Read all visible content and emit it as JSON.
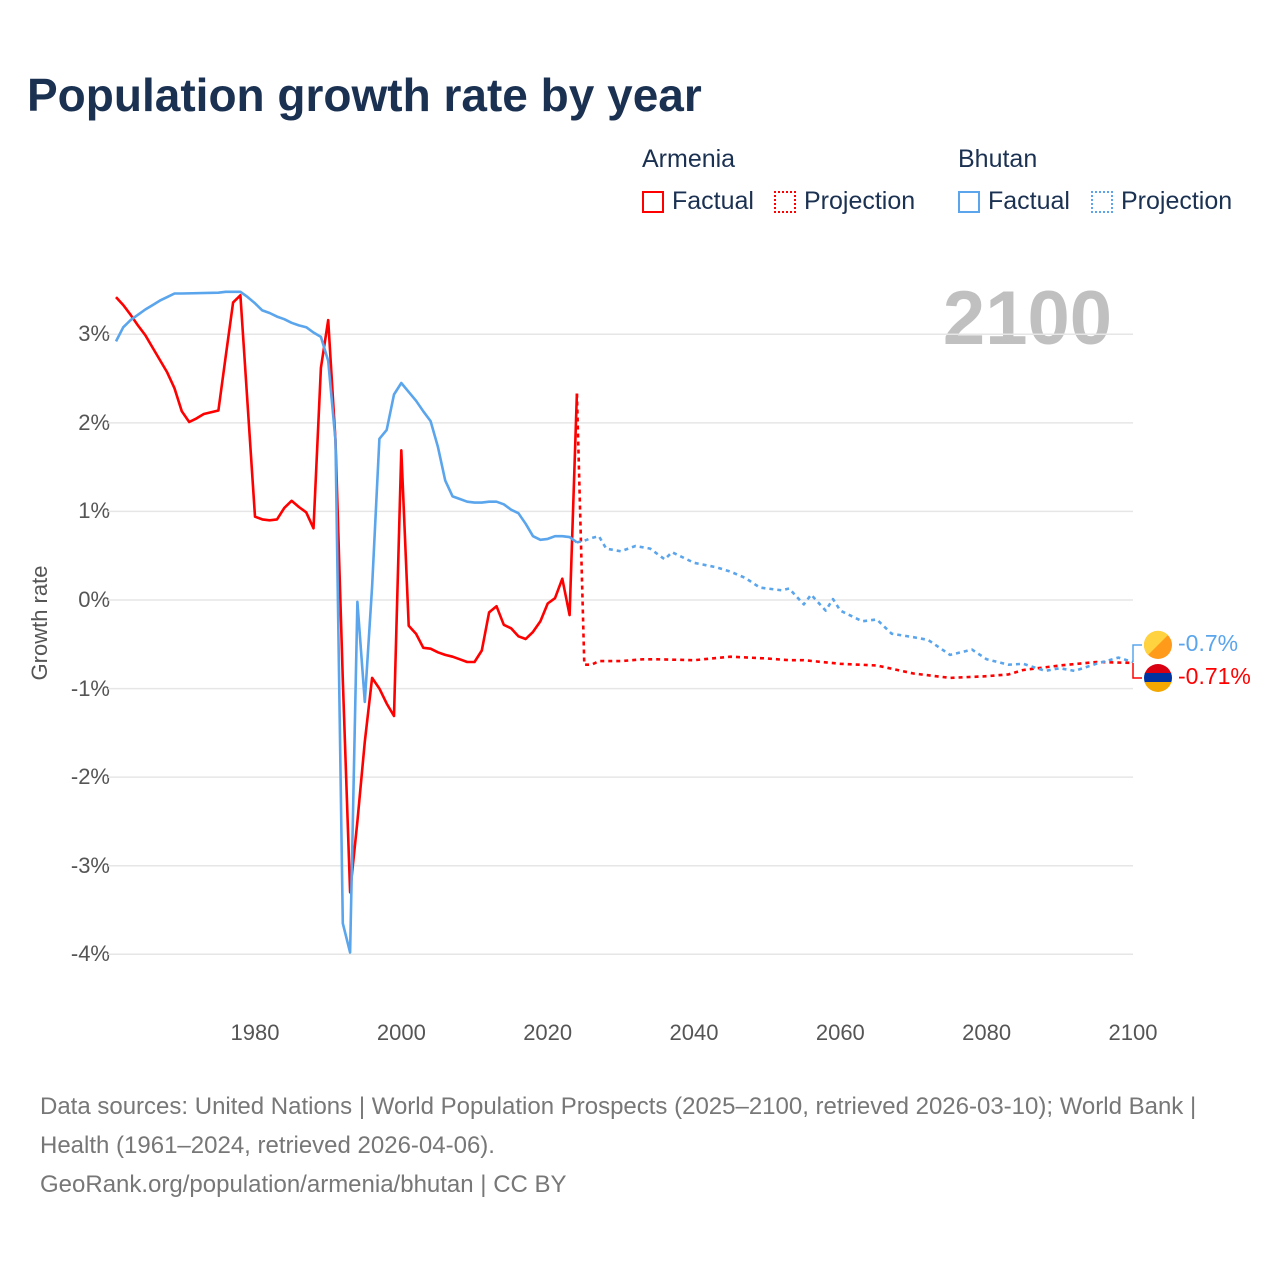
{
  "chart_data": {
    "type": "line",
    "title": "Population growth rate by year",
    "ylabel": "Growth rate",
    "xlabel": "",
    "xlim": [
      1961,
      2100
    ],
    "ylim": [
      -4,
      3
    ],
    "grid": true,
    "current_year": "2100",
    "x_ticks": [
      "1980",
      "2000",
      "2020",
      "2040",
      "2060",
      "2080",
      "2100"
    ],
    "y_ticks": [
      "3%",
      "2%",
      "1%",
      "0%",
      "-1%",
      "-2%",
      "-3%",
      "-4%"
    ],
    "legend": {
      "armenia": "Armenia",
      "bhutan": "Bhutan",
      "factual": "Factual",
      "projection": "Projection",
      "placement": "top-right"
    },
    "series": [
      {
        "name": "Armenia",
        "kind": "Factual",
        "color": "#ff0000",
        "x": [
          1961,
          1962,
          1963,
          1964,
          1965,
          1966,
          1967,
          1968,
          1969,
          1970,
          1971,
          1972,
          1973,
          1974,
          1975,
          1976,
          1977,
          1978,
          1979,
          1980,
          1981,
          1982,
          1983,
          1984,
          1985,
          1986,
          1987,
          1988,
          1989,
          1990,
          1991,
          1992,
          1993,
          1994,
          1995,
          1996,
          1997,
          1998,
          1999,
          2000,
          2001,
          2002,
          2003,
          2004,
          2005,
          2006,
          2007,
          2008,
          2009,
          2010,
          2011,
          2012,
          2013,
          2014,
          2015,
          2016,
          2017,
          2018,
          2019,
          2020,
          2021,
          2022,
          2023,
          2024
        ],
        "y": [
          3.42,
          3.33,
          3.22,
          3.1,
          2.99,
          2.85,
          2.71,
          2.57,
          2.39,
          2.13,
          2.01,
          2.05,
          2.1,
          2.12,
          2.14,
          2.75,
          3.36,
          3.44,
          2.19,
          0.94,
          0.91,
          0.9,
          0.91,
          1.04,
          1.12,
          1.05,
          0.99,
          0.81,
          2.62,
          3.16,
          1.8,
          -0.9,
          -3.3,
          -2.5,
          -1.6,
          -0.88,
          -1.0,
          -1.17,
          -1.31,
          1.69,
          -0.29,
          -0.38,
          -0.54,
          -0.55,
          -0.59,
          -0.62,
          -0.64,
          -0.67,
          -0.7,
          -0.7,
          -0.57,
          -0.14,
          -0.07,
          -0.28,
          -0.32,
          -0.41,
          -0.44,
          -0.36,
          -0.24,
          -0.04,
          0.02,
          0.24,
          -0.17,
          2.33
        ]
      },
      {
        "name": "Armenia",
        "kind": "Projection",
        "color": "#ff0000",
        "x": [
          2024,
          2025,
          2026,
          2027,
          2030,
          2033,
          2035,
          2040,
          2045,
          2050,
          2053,
          2055,
          2060,
          2065,
          2070,
          2075,
          2080,
          2083,
          2085,
          2090,
          2095,
          2100
        ],
        "y": [
          2.33,
          -0.73,
          -0.73,
          -0.69,
          -0.69,
          -0.67,
          -0.67,
          -0.68,
          -0.64,
          -0.66,
          -0.68,
          -0.68,
          -0.72,
          -0.74,
          -0.83,
          -0.88,
          -0.86,
          -0.84,
          -0.79,
          -0.74,
          -0.7,
          -0.71
        ]
      },
      {
        "name": "Bhutan",
        "kind": "Factual",
        "color": "#5aa5ec",
        "x": [
          1961,
          1962,
          1963,
          1964,
          1965,
          1966,
          1967,
          1968,
          1969,
          1970,
          1975,
          1976,
          1977,
          1978,
          1979,
          1980,
          1981,
          1982,
          1983,
          1984,
          1985,
          1986,
          1987,
          1988,
          1989,
          1990,
          1991,
          1992,
          1993,
          1994,
          1995,
          1996,
          1997,
          1998,
          1999,
          2000,
          2001,
          2002,
          2003,
          2004,
          2005,
          2006,
          2007,
          2008,
          2009,
          2010,
          2011,
          2012,
          2013,
          2014,
          2015,
          2016,
          2017,
          2018,
          2019,
          2020,
          2021,
          2022,
          2023,
          2024
        ],
        "y": [
          2.92,
          3.08,
          3.16,
          3.22,
          3.28,
          3.33,
          3.38,
          3.42,
          3.46,
          3.46,
          3.47,
          3.48,
          3.48,
          3.48,
          3.42,
          3.35,
          3.27,
          3.24,
          3.2,
          3.17,
          3.13,
          3.1,
          3.08,
          3.02,
          2.97,
          2.7,
          1.8,
          -3.65,
          -3.98,
          -0.02,
          -1.15,
          0.15,
          1.82,
          1.92,
          2.32,
          2.45,
          2.35,
          2.25,
          2.13,
          2.02,
          1.73,
          1.35,
          1.17,
          1.14,
          1.11,
          1.1,
          1.1,
          1.11,
          1.11,
          1.08,
          1.02,
          0.98,
          0.86,
          0.72,
          0.68,
          0.69,
          0.72,
          0.72,
          0.71,
          0.65
        ]
      },
      {
        "name": "Bhutan",
        "kind": "Projection",
        "color": "#5aa5ec",
        "x": [
          2024,
          2025,
          2026,
          2027,
          2028,
          2030,
          2032,
          2034,
          2036,
          2037,
          2040,
          2043,
          2045,
          2047,
          2049,
          2052,
          2053,
          2055,
          2056,
          2058,
          2059,
          2060,
          2063,
          2065,
          2067,
          2070,
          2072,
          2075,
          2078,
          2080,
          2083,
          2085,
          2088,
          2090,
          2092,
          2095,
          2098,
          2100
        ],
        "y": [
          0.65,
          0.67,
          0.7,
          0.72,
          0.58,
          0.55,
          0.61,
          0.58,
          0.46,
          0.54,
          0.42,
          0.37,
          0.32,
          0.25,
          0.14,
          0.11,
          0.13,
          -0.05,
          0.06,
          -0.12,
          0.01,
          -0.12,
          -0.24,
          -0.22,
          -0.38,
          -0.42,
          -0.45,
          -0.62,
          -0.56,
          -0.67,
          -0.73,
          -0.72,
          -0.8,
          -0.77,
          -0.8,
          -0.72,
          -0.65,
          -0.7
        ]
      }
    ],
    "end_labels": {
      "bhutan": "-0.7%",
      "armenia": "-0.71%"
    }
  },
  "footer": {
    "sources": "Data sources: United Nations | World Population Prospects (2025–2100, retrieved 2026-03-10); World Bank | Health (1961–2024, retrieved 2026-04-06).",
    "credit": "GeoRank.org/population/armenia/bhutan | CC BY"
  },
  "colors": {
    "armenia": "#ff0000",
    "bhutan": "#5aa5ec",
    "title": "#1b3152"
  }
}
